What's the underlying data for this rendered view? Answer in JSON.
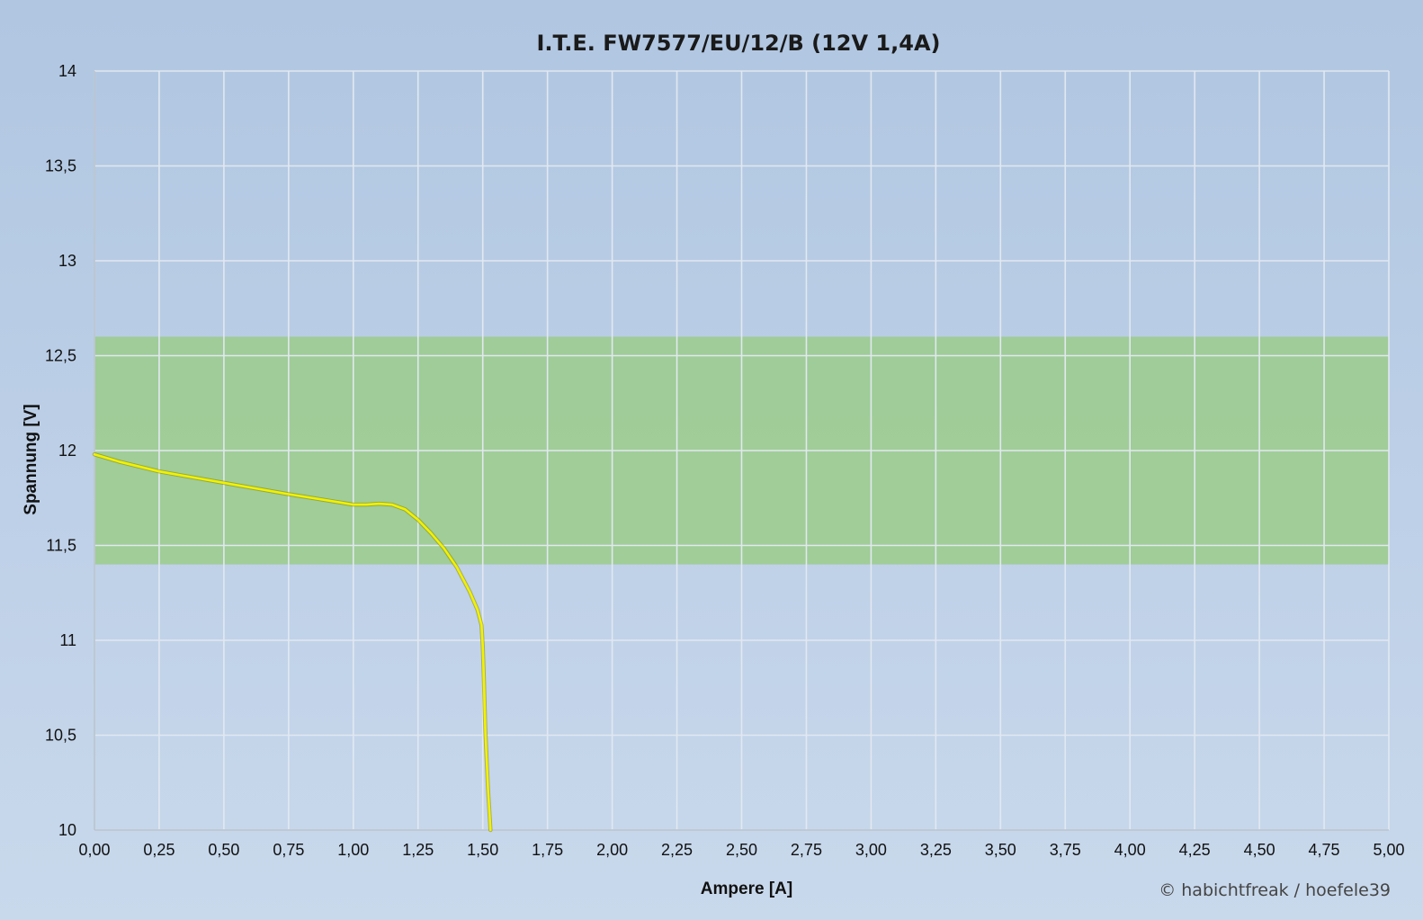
{
  "chart_data": {
    "type": "line",
    "title": "I.T.E. FW7577/EU/12/B (12V 1,4A)",
    "xlabel": "Ampere [A]",
    "ylabel": "Spannung [V]",
    "xlim": [
      0,
      5
    ],
    "ylim": [
      10,
      14
    ],
    "x_ticks": [
      "0,00",
      "0,25",
      "0,50",
      "0,75",
      "1,00",
      "1,25",
      "1,50",
      "1,75",
      "2,00",
      "2,25",
      "2,50",
      "2,75",
      "3,00",
      "3,25",
      "3,50",
      "3,75",
      "4,00",
      "4,25",
      "4,50",
      "4,75",
      "5,00"
    ],
    "y_ticks": [
      "10",
      "10,5",
      "11",
      "11,5",
      "12",
      "12,5",
      "13",
      "13,5",
      "14"
    ],
    "grid": true,
    "band": {
      "y_from": 11.4,
      "y_to": 12.6,
      "color": "#9ccc8f"
    },
    "series": [
      {
        "color": "#f2f200",
        "x": [
          0.0,
          0.1,
          0.25,
          0.5,
          0.75,
          1.0,
          1.05,
          1.1,
          1.15,
          1.2,
          1.25,
          1.3,
          1.35,
          1.4,
          1.45,
          1.48,
          1.495,
          1.5,
          1.505,
          1.51,
          1.52,
          1.53
        ],
        "y": [
          11.98,
          11.94,
          11.89,
          11.83,
          11.77,
          11.715,
          11.715,
          11.72,
          11.715,
          11.69,
          11.635,
          11.565,
          11.485,
          11.385,
          11.255,
          11.16,
          11.08,
          10.97,
          10.77,
          10.52,
          10.22,
          10.0
        ]
      }
    ],
    "credit": "© habichtfreak / hoefele39"
  }
}
